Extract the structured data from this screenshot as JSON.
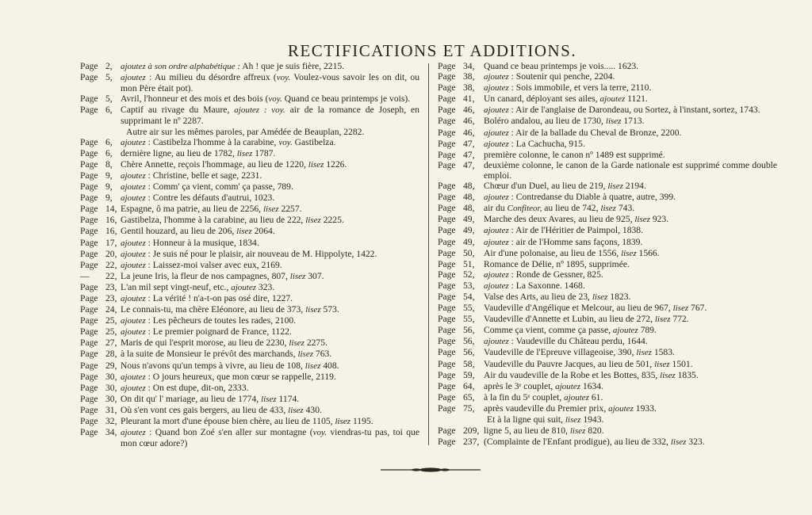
{
  "title": "RECTIFICATIONS ET ADDITIONS.",
  "left_column": [
    {
      "label": "Page",
      "num": "2,",
      "parts": [
        {
          "t": "ajoutez à son ordre alphabétique :",
          "i": true
        },
        " Ah ! que je suis fière, 2215."
      ]
    },
    {
      "label": "Page",
      "num": "5,",
      "parts": [
        {
          "t": "ajoutez",
          "i": true
        },
        " : Au milieu du désordre affreux (",
        {
          "t": "voy.",
          "i": true
        },
        " Voulez-vous savoir les on dit, ou mon Père était pot)."
      ]
    },
    {
      "label": "Page",
      "num": "5,",
      "parts": [
        "Avril, l'honneur et des mois et des bois (",
        {
          "t": "voy.",
          "i": true
        },
        " Quand ce beau printemps je vois)."
      ]
    },
    {
      "label": "Page",
      "num": "6,",
      "parts": [
        "Captif au rivage du Maure, ",
        {
          "t": "ajoutez : voy.",
          "i": true
        },
        " air de la romance de Joseph, en supprimant le nº 2287."
      ]
    },
    {
      "label": "",
      "num": "",
      "parts": [
        "Autre air sur les mêmes paroles, par Amédée de Beauplan, 2282."
      ]
    },
    {
      "label": "Page",
      "num": "6,",
      "parts": [
        {
          "t": "ajoutez",
          "i": true
        },
        " : Castibelza l'homme à la carabine, ",
        {
          "t": "voy.",
          "i": true
        },
        " Gastibelza."
      ]
    },
    {
      "label": "Page",
      "num": "6,",
      "parts": [
        "dernière ligne, au lieu de 1782, ",
        {
          "t": "lisez",
          "i": true
        },
        " 1787."
      ]
    },
    {
      "label": "Page",
      "num": "8,",
      "parts": [
        "Chère Annette, reçois l'hommage, au lieu de 1220, ",
        {
          "t": "lisez",
          "i": true
        },
        " 1226."
      ]
    },
    {
      "label": "Page",
      "num": "9,",
      "parts": [
        {
          "t": "ajoutez",
          "i": true
        },
        " : Christine, belle et sage, 2231."
      ]
    },
    {
      "label": "Page",
      "num": "9,",
      "parts": [
        {
          "t": "ajoutez",
          "i": true
        },
        " : Comm' ça vient, comm' ça passe, 789."
      ]
    },
    {
      "label": "Page",
      "num": "9,",
      "parts": [
        {
          "t": "ajoutez",
          "i": true
        },
        " : Contre les défauts d'autrui, 1023."
      ]
    },
    {
      "label": "Page",
      "num": "14,",
      "parts": [
        "Espagne, ô ma patrie, au lieu de 2256, ",
        {
          "t": "lisez",
          "i": true
        },
        " 2257."
      ]
    },
    {
      "label": "Page",
      "num": "16,",
      "parts": [
        "Gastibelza, l'homme à la carabine, au lieu de 222, ",
        {
          "t": "lisez",
          "i": true
        },
        " 2225."
      ]
    },
    {
      "label": "Page",
      "num": "16,",
      "parts": [
        "Gentil houzard, au lieu de 206, ",
        {
          "t": "lisez",
          "i": true
        },
        " 2064."
      ]
    },
    {
      "label": "Page",
      "num": "17,",
      "parts": [
        {
          "t": "ajoutez",
          "i": true
        },
        " : Honneur à la musique, 1834."
      ]
    },
    {
      "label": "Page",
      "num": "20,",
      "parts": [
        {
          "t": "ajoutez",
          "i": true
        },
        " : Je suis né pour le plaisir, air nouveau de M. Hippolyte, 1422."
      ]
    },
    {
      "label": "Page",
      "num": "22,",
      "parts": [
        {
          "t": "ajoutez",
          "i": true
        },
        " : Laissez-moi valser avec eux, 2169."
      ]
    },
    {
      "label": "—",
      "num": "22,",
      "parts": [
        "La jeune Iris, la fleur de nos campagnes, 807, ",
        {
          "t": "lisez",
          "i": true
        },
        " 307."
      ]
    },
    {
      "label": "Page",
      "num": "23,",
      "parts": [
        "L'an mil sept vingt-neuf, etc., ",
        {
          "t": "ajoutez",
          "i": true
        },
        " 323."
      ]
    },
    {
      "label": "Page",
      "num": "23,",
      "parts": [
        {
          "t": "ajoutez",
          "i": true
        },
        " : La vérité ! n'a-t-on pas osé dire, 1227."
      ]
    },
    {
      "label": "Page",
      "num": "24,",
      "parts": [
        "Le connais-tu, ma chère Eléonore, au lieu de 373, ",
        {
          "t": "lisez",
          "i": true
        },
        " 573."
      ]
    },
    {
      "label": "Page",
      "num": "25,",
      "parts": [
        {
          "t": "ajoutez",
          "i": true
        },
        " : Les pêcheurs de toutes les rades, 2100."
      ]
    },
    {
      "label": "Page",
      "num": "25,",
      "parts": [
        {
          "t": "ajoutez",
          "i": true
        },
        " : Le premier poignard de France, 1122."
      ]
    },
    {
      "label": "Page",
      "num": "27,",
      "parts": [
        "Maris de qui l'esprit morose, au lieu de 2230, ",
        {
          "t": "lisez",
          "i": true
        },
        " 2275."
      ]
    },
    {
      "label": "Page",
      "num": "28,",
      "parts": [
        "à la suite de Monsieur le prévôt des marchands, ",
        {
          "t": "lisez",
          "i": true
        },
        " 763."
      ]
    },
    {
      "label": "Page",
      "num": "29,",
      "parts": [
        "Nous n'avons qu'un temps à vivre, au lieu de 108, ",
        {
          "t": "lisez",
          "i": true
        },
        " 408."
      ]
    },
    {
      "label": "Page",
      "num": "30,",
      "parts": [
        {
          "t": "ajoutez",
          "i": true
        },
        " : O jours heureux, que mon cœur se rappelle, 2119."
      ]
    },
    {
      "label": "Page",
      "num": "30,",
      "parts": [
        {
          "t": "ajoutez",
          "i": true
        },
        " : On est dupe, dit-on, 2333."
      ]
    },
    {
      "label": "Page",
      "num": "30,",
      "parts": [
        "On dit qu' l' mariage, au lieu de 1774, ",
        {
          "t": "lisez",
          "i": true
        },
        " 1174."
      ]
    },
    {
      "label": "Page",
      "num": "31,",
      "parts": [
        "Où s'en vont ces gais bergers, au lieu de 433, ",
        {
          "t": "lisez",
          "i": true
        },
        " 430."
      ]
    },
    {
      "label": "Page",
      "num": "32,",
      "parts": [
        "Pleurant la mort d'une épouse bien chère, au lieu de 1105, ",
        {
          "t": "lisez",
          "i": true
        },
        " 1195."
      ]
    },
    {
      "label": "Page",
      "num": "34,",
      "parts": [
        {
          "t": "ajoutez",
          "i": true
        },
        " : Quand bon Zoé s'en aller sur montagne (",
        {
          "t": "voy.",
          "i": true
        },
        " viendras-tu pas, toi que mon cœur adore?)"
      ]
    }
  ],
  "right_column": [
    {
      "label": "Page",
      "num": "34,",
      "parts": [
        "Quand ce beau printemps je vois..... 1623."
      ]
    },
    {
      "label": "Page",
      "num": "38,",
      "parts": [
        {
          "t": "ajoutez",
          "i": true
        },
        " : Soutenir qui penche, 2204."
      ]
    },
    {
      "label": "Page",
      "num": "38,",
      "parts": [
        {
          "t": "ajoutez",
          "i": true
        },
        " : Sois immobile, et vers la terre, 2110."
      ]
    },
    {
      "label": "Page",
      "num": "41,",
      "parts": [
        "Un canard, déployant ses ailes, ",
        {
          "t": "ajoutez",
          "i": true
        },
        " 1121."
      ]
    },
    {
      "label": "Page",
      "num": "46,",
      "parts": [
        {
          "t": "ajoutez",
          "i": true
        },
        " : Air de l'anglaise de Darondeau, ou Sortez, à l'instant, sortez, 1743."
      ]
    },
    {
      "label": "Page",
      "num": "46,",
      "parts": [
        "Boléro andalou, au lieu de 1730, ",
        {
          "t": "lisez",
          "i": true
        },
        " 1713."
      ]
    },
    {
      "label": "Page",
      "num": "46,",
      "parts": [
        {
          "t": "ajoutez",
          "i": true
        },
        " : Air de la ballade du Cheval de Bronze, 2200."
      ]
    },
    {
      "label": "Page",
      "num": "47,",
      "parts": [
        {
          "t": "ajoutez",
          "i": true
        },
        " : La Cachucha, 915."
      ]
    },
    {
      "label": "Page",
      "num": "47,",
      "parts": [
        "première colonne, le canon nº 1489 est supprimé."
      ]
    },
    {
      "label": "Page",
      "num": "47,",
      "parts": [
        "deuxième colonne, le canon de la Garde nationale est supprimé comme double emploi."
      ]
    },
    {
      "label": "Page",
      "num": "48,",
      "parts": [
        "Chœur d'un Duel, au lieu de 219, ",
        {
          "t": "lisez",
          "i": true
        },
        " 2194."
      ]
    },
    {
      "label": "Page",
      "num": "48,",
      "parts": [
        {
          "t": "ajoutez",
          "i": true
        },
        " : Contredanse du Diable à quatre, autre, 399."
      ]
    },
    {
      "label": "Page",
      "num": "48,",
      "parts": [
        "air du ",
        {
          "t": "Confiteor,",
          "i": true
        },
        " au lieu de 742, ",
        {
          "t": "lisez",
          "i": true
        },
        " 743."
      ]
    },
    {
      "label": "Page",
      "num": "49,",
      "parts": [
        "Marche des deux Avares, au lieu de 925, ",
        {
          "t": "lisez",
          "i": true
        },
        " 923."
      ]
    },
    {
      "label": "Page",
      "num": "49,",
      "parts": [
        {
          "t": "ajoutez",
          "i": true
        },
        " : Air de l'Héritier de Paimpol, 1838."
      ]
    },
    {
      "label": "Page",
      "num": "49,",
      "parts": [
        {
          "t": "ajoutez",
          "i": true
        },
        " : air de l'Homme sans façons, 1839."
      ]
    },
    {
      "label": "Page",
      "num": "50,",
      "parts": [
        "Air d'une polonaise, au lieu de 1556, ",
        {
          "t": "lisez",
          "i": true
        },
        " 1566."
      ]
    },
    {
      "label": "Page",
      "num": "51,",
      "parts": [
        "Romance de Délie, nº 1895, supprimée."
      ]
    },
    {
      "label": "Page",
      "num": "52,",
      "parts": [
        {
          "t": "ajoutez",
          "i": true
        },
        " : Ronde de Gessner, 825."
      ]
    },
    {
      "label": "Page",
      "num": "53,",
      "parts": [
        {
          "t": "ajoutez",
          "i": true
        },
        " : La Saxonne. 1468."
      ]
    },
    {
      "label": "Page",
      "num": "54,",
      "parts": [
        "Valse des Arts, au lieu de 23, ",
        {
          "t": "lisez",
          "i": true
        },
        " 1823."
      ]
    },
    {
      "label": "Page",
      "num": "55,",
      "parts": [
        "Vaudeville d'Angélique et Melcour, au lieu de 967, ",
        {
          "t": "lisez",
          "i": true
        },
        " 767."
      ]
    },
    {
      "label": "Page",
      "num": "55,",
      "parts": [
        "Vaudeville d'Annette et Lubin, au lieu de 272, ",
        {
          "t": "lisez",
          "i": true
        },
        " 772."
      ]
    },
    {
      "label": "Page",
      "num": "56,",
      "parts": [
        "Comme ça vient, comme ça passe, ",
        {
          "t": "ajoutez",
          "i": true
        },
        " 789."
      ]
    },
    {
      "label": "Page",
      "num": "56,",
      "parts": [
        {
          "t": "ajoutez",
          "i": true
        },
        " : Vaudeville du Château perdu, 1644."
      ]
    },
    {
      "label": "Page",
      "num": "56,",
      "parts": [
        "Vaudeville de l'Epreuve villageoise, 390, ",
        {
          "t": "lisez",
          "i": true
        },
        " 1583."
      ]
    },
    {
      "label": "Page",
      "num": "58,",
      "parts": [
        "Vaudeville du Pauvre Jacques, au lieu de 501, ",
        {
          "t": "lisez",
          "i": true
        },
        " 1501."
      ]
    },
    {
      "label": "Page",
      "num": "59,",
      "parts": [
        "Air du vaudeville de la Robe et les Bottes, 835, ",
        {
          "t": "lisez",
          "i": true
        },
        " 1835."
      ]
    },
    {
      "label": "Page",
      "num": "64,",
      "parts": [
        "après le 3ᵉ couplet, ",
        {
          "t": "ajoutez",
          "i": true
        },
        " 1634."
      ]
    },
    {
      "label": "Page",
      "num": "65,",
      "parts": [
        "à la fin du 5ᵉ couplet, ",
        {
          "t": "ajoutez",
          "i": true
        },
        " 61."
      ]
    },
    {
      "label": "Page",
      "num": "75,",
      "parts": [
        "après vaudeville du Premier prix, ",
        {
          "t": "ajoutez",
          "i": true
        },
        " 1933."
      ]
    },
    {
      "label": "",
      "num": "",
      "parts": [
        "Et à la ligne qui suit, ",
        {
          "t": "lisez",
          "i": true
        },
        " 1943."
      ]
    },
    {
      "label": "Page",
      "num": "209,",
      "parts": [
        "ligne 5, au lieu de 810, ",
        {
          "t": "lisez",
          "i": true
        },
        " 820."
      ]
    },
    {
      "label": "Page",
      "num": "237,",
      "parts": [
        "(Complainte de l'Enfant prodigue), au lieu de 332, ",
        {
          "t": "lisez",
          "i": true
        },
        " 323."
      ]
    }
  ],
  "colors": {
    "paper": "#f7f2e6",
    "ink": "#2b2620"
  },
  "ornament_icon": "fleuron-rule"
}
